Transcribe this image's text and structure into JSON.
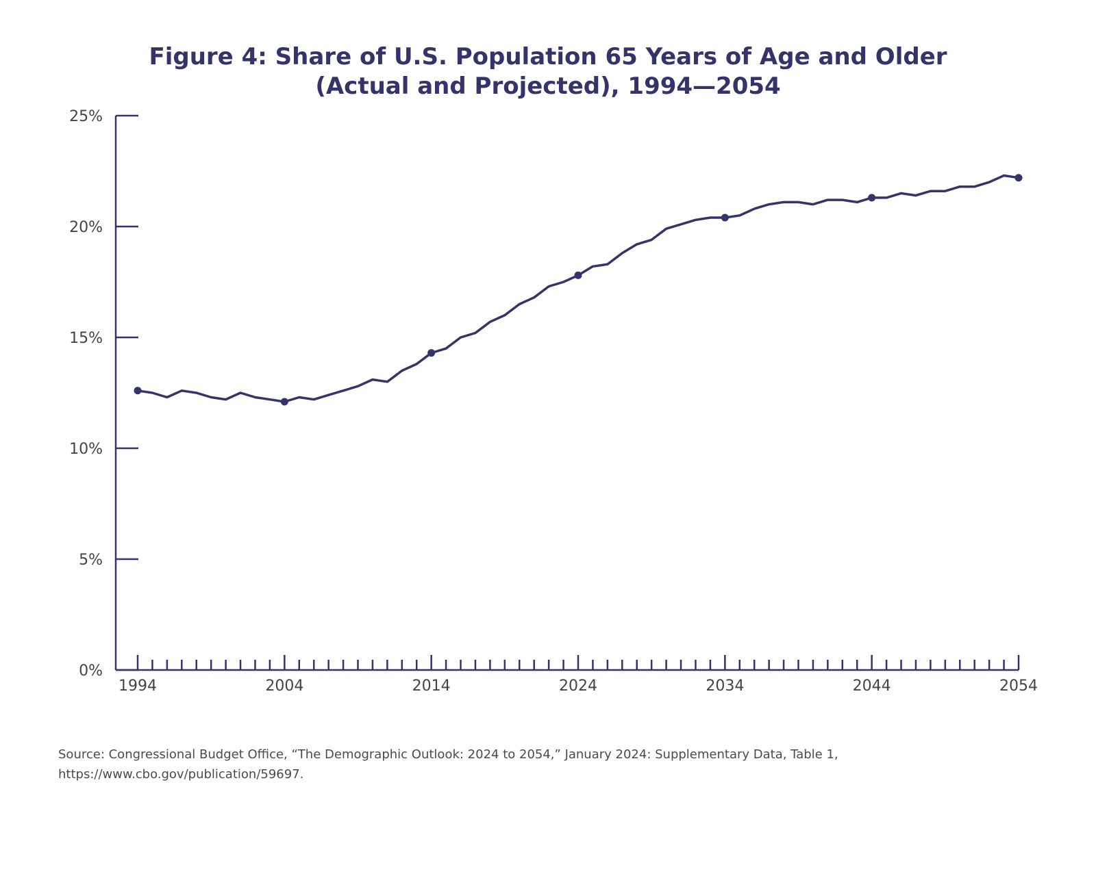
{
  "chart_data": {
    "type": "line",
    "title": "Figure 4: Share of U.S. Population 65 Years of Age and Older",
    "subtitle": "(Actual and Projected), 1994—2054",
    "xlabel": "",
    "ylabel": "",
    "xlim": [
      1994,
      2054
    ],
    "ylim": [
      0,
      25
    ],
    "y_ticks": [
      0,
      5,
      10,
      15,
      20,
      25
    ],
    "y_tick_labels": [
      "0%",
      "5%",
      "10%",
      "15%",
      "20%",
      "25%"
    ],
    "x_ticks": [
      1994,
      2004,
      2014,
      2024,
      2034,
      2044,
      2054
    ],
    "x_tick_labels": [
      "1994",
      "2004",
      "2014",
      "2024",
      "2034",
      "2044",
      "2054"
    ],
    "grid": false,
    "legend": "none",
    "line_color": "#34336a",
    "series": [
      {
        "x": [
          1994,
          1995,
          1996,
          1997,
          1998,
          1999,
          2000,
          2001,
          2002,
          2003,
          2004,
          2005,
          2006,
          2007,
          2008,
          2009,
          2010,
          2011,
          2012,
          2013,
          2014,
          2015,
          2016,
          2017,
          2018,
          2019,
          2020,
          2021,
          2022,
          2023,
          2024,
          2025,
          2026,
          2027,
          2028,
          2029,
          2030,
          2031,
          2032,
          2033,
          2034,
          2035,
          2036,
          2037,
          2038,
          2039,
          2040,
          2041,
          2042,
          2043,
          2044,
          2045,
          2046,
          2047,
          2048,
          2049,
          2050,
          2051,
          2052,
          2053,
          2054
        ],
        "values": [
          12.6,
          12.5,
          12.3,
          12.6,
          12.5,
          12.3,
          12.2,
          12.5,
          12.3,
          12.2,
          12.1,
          12.3,
          12.2,
          12.4,
          12.6,
          12.8,
          13.1,
          13.0,
          13.5,
          13.8,
          14.3,
          14.5,
          15.0,
          15.2,
          15.7,
          16.0,
          16.5,
          16.8,
          17.3,
          17.5,
          17.8,
          18.2,
          18.3,
          18.8,
          19.2,
          19.4,
          19.9,
          20.1,
          20.3,
          20.4,
          20.4,
          20.5,
          20.8,
          21.0,
          21.1,
          21.1,
          21.0,
          21.2,
          21.2,
          21.1,
          21.3,
          21.3,
          21.5,
          21.4,
          21.6,
          21.6,
          21.8,
          21.8,
          22.0,
          22.3,
          22.2
        ],
        "markers_at": [
          1994,
          2004,
          2014,
          2024,
          2034,
          2044,
          2054
        ]
      }
    ]
  },
  "source": {
    "line1": "Source: Congressional Budget Office, “The Demographic Outlook: 2024 to 2054,” January 2024: Supplementary Data, Table 1,",
    "line2": "https://www.cbo.gov/publication/59697."
  }
}
